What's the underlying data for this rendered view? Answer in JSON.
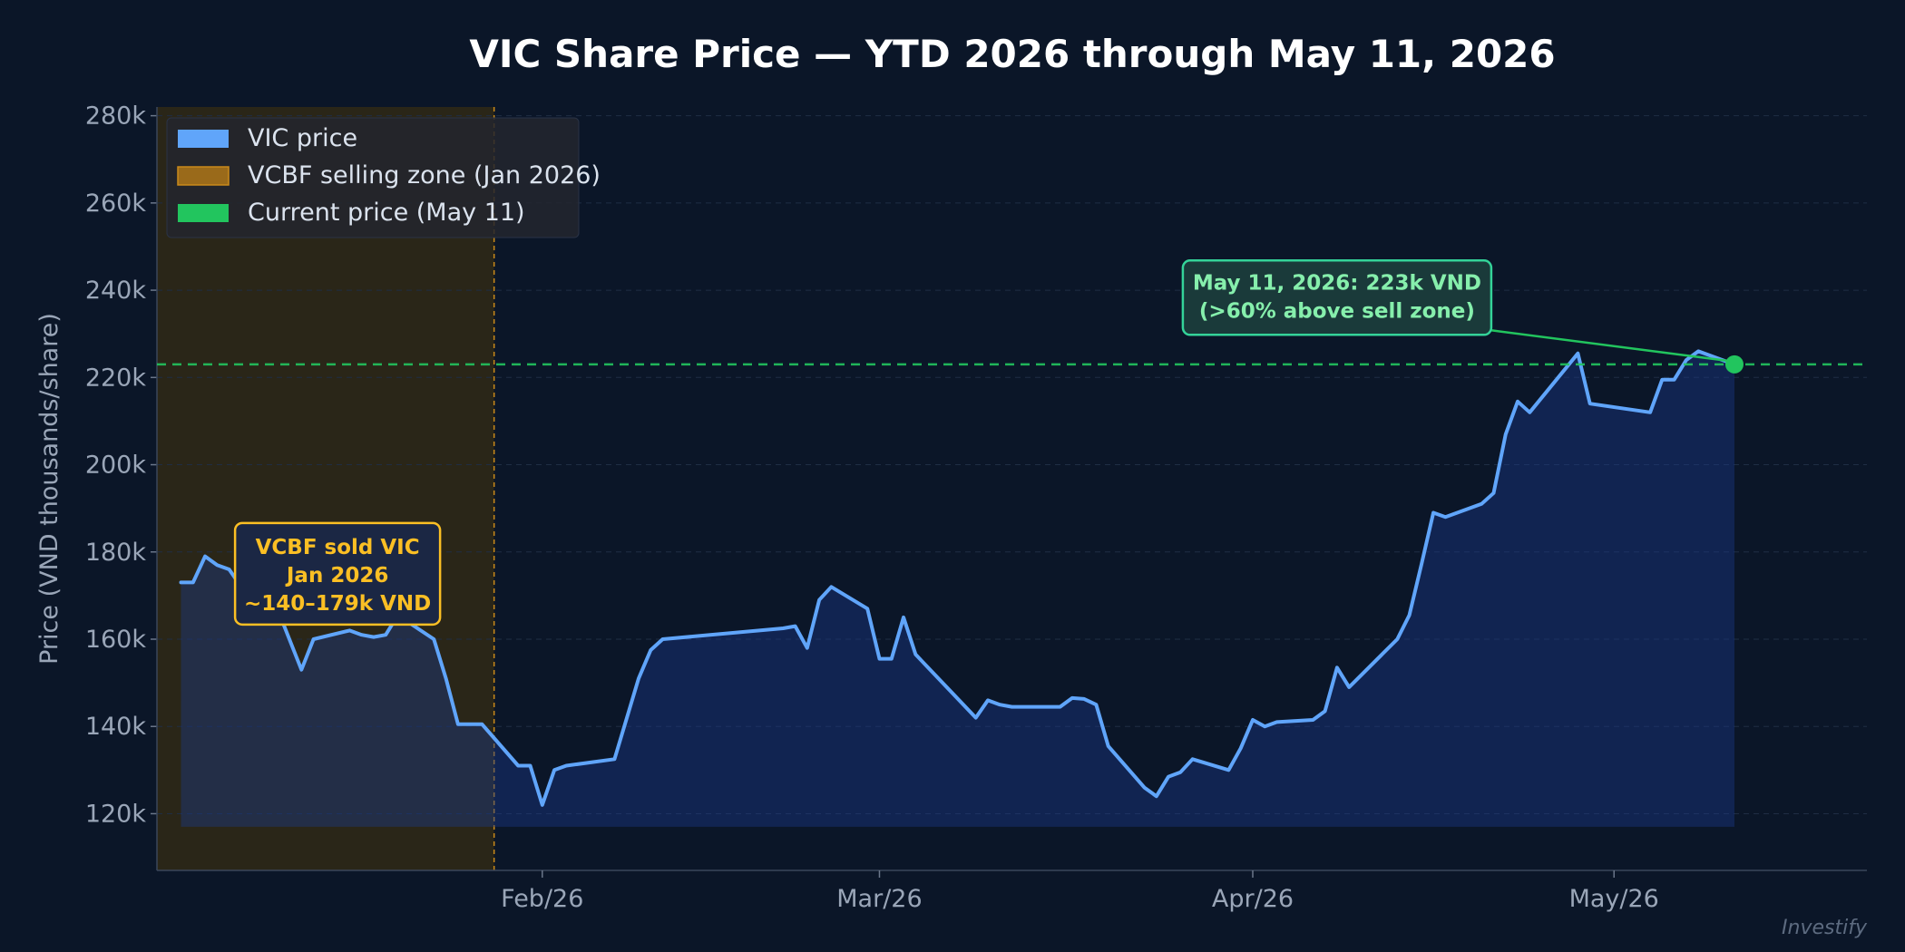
{
  "chart_data": {
    "type": "line",
    "title": "VIC Share Price — YTD 2026 through May 11, 2026",
    "ylabel": "Price (VND thousands/share)",
    "xlabel": "",
    "ylim": [
      107,
      282
    ],
    "xlim": [
      "2025-12-31",
      "2026-05-22"
    ],
    "y_ticks": [
      120,
      140,
      160,
      180,
      200,
      220,
      240,
      260,
      280
    ],
    "y_tick_labels": [
      "120k",
      "140k",
      "160k",
      "180k",
      "200k",
      "220k",
      "240k",
      "260k",
      "280k"
    ],
    "x_ticks": [
      {
        "date": "2026-02-01",
        "label": "Feb/26"
      },
      {
        "date": "2026-03-01",
        "label": "Mar/26"
      },
      {
        "date": "2026-04-01",
        "label": "Apr/26"
      },
      {
        "date": "2026-05-01",
        "label": "May/26"
      }
    ],
    "grid": true,
    "legend_position": "top-left",
    "series": [
      {
        "name": "VIC price",
        "color": "#60a5fa",
        "points": [
          [
            "2026-01-02",
            173
          ],
          [
            "2026-01-03",
            173
          ],
          [
            "2026-01-04",
            179
          ],
          [
            "2026-01-05",
            177
          ],
          [
            "2026-01-06",
            176
          ],
          [
            "2026-01-09",
            164
          ],
          [
            "2026-01-10",
            167
          ],
          [
            "2026-01-12",
            153
          ],
          [
            "2026-01-13",
            160
          ],
          [
            "2026-01-16",
            162
          ],
          [
            "2026-01-17",
            161
          ],
          [
            "2026-01-18",
            160.5
          ],
          [
            "2026-01-19",
            161
          ],
          [
            "2026-01-20",
            165.5
          ],
          [
            "2026-01-23",
            160
          ],
          [
            "2026-01-24",
            151
          ],
          [
            "2026-01-25",
            140.5
          ],
          [
            "2026-01-27",
            140.5
          ],
          [
            "2026-01-30",
            131
          ],
          [
            "2026-01-31",
            131
          ],
          [
            "2026-02-01",
            122
          ],
          [
            "2026-02-02",
            130
          ],
          [
            "2026-02-03",
            131
          ],
          [
            "2026-02-07",
            132.5
          ],
          [
            "2026-02-09",
            151
          ],
          [
            "2026-02-10",
            157.5
          ],
          [
            "2026-02-11",
            160
          ],
          [
            "2026-02-21",
            162.5
          ],
          [
            "2026-02-22",
            163
          ],
          [
            "2026-02-23",
            158
          ],
          [
            "2026-02-24",
            169
          ],
          [
            "2026-02-25",
            172
          ],
          [
            "2026-02-28",
            167
          ],
          [
            "2026-03-01",
            155.5
          ],
          [
            "2026-03-02",
            155.5
          ],
          [
            "2026-03-03",
            165
          ],
          [
            "2026-03-04",
            156.5
          ],
          [
            "2026-03-09",
            142
          ],
          [
            "2026-03-10",
            146
          ],
          [
            "2026-03-11",
            145
          ],
          [
            "2026-03-12",
            144.5
          ],
          [
            "2026-03-16",
            144.5
          ],
          [
            "2026-03-17",
            146.5
          ],
          [
            "2026-03-18",
            146.3
          ],
          [
            "2026-03-19",
            145
          ],
          [
            "2026-03-20",
            135.5
          ],
          [
            "2026-03-23",
            126
          ],
          [
            "2026-03-24",
            124
          ],
          [
            "2026-03-25",
            128.5
          ],
          [
            "2026-03-26",
            129.5
          ],
          [
            "2026-03-27",
            132.5
          ],
          [
            "2026-03-30",
            130
          ],
          [
            "2026-03-31",
            135
          ],
          [
            "2026-04-01",
            141.5
          ],
          [
            "2026-04-02",
            140
          ],
          [
            "2026-04-03",
            141
          ],
          [
            "2026-04-06",
            141.5
          ],
          [
            "2026-04-07",
            143.5
          ],
          [
            "2026-04-08",
            153.5
          ],
          [
            "2026-04-09",
            149
          ],
          [
            "2026-04-13",
            160
          ],
          [
            "2026-04-14",
            165.5
          ],
          [
            "2026-04-15",
            177
          ],
          [
            "2026-04-16",
            189
          ],
          [
            "2026-04-17",
            188
          ],
          [
            "2026-04-20",
            191
          ],
          [
            "2026-04-21",
            193.5
          ],
          [
            "2026-04-22",
            207
          ],
          [
            "2026-04-23",
            214.5
          ],
          [
            "2026-04-24",
            212
          ],
          [
            "2026-04-28",
            225.5
          ],
          [
            "2026-04-29",
            214
          ],
          [
            "2026-05-04",
            212
          ],
          [
            "2026-05-05",
            219.5
          ],
          [
            "2026-05-06",
            219.5
          ],
          [
            "2026-05-07",
            224
          ],
          [
            "2026-05-08",
            226
          ],
          [
            "2026-05-11",
            223
          ]
        ]
      }
    ],
    "legend": [
      {
        "label": "VIC price",
        "color": "#60a5fa"
      },
      {
        "label": "VCBF selling zone (Jan 2026)",
        "color": "#9a6a1a"
      },
      {
        "label": "Current price (May 11)",
        "color": "#22c55e"
      }
    ],
    "shaded_zone": {
      "from": "2025-12-31",
      "to": "2026-01-28",
      "color": "#9a6a1a"
    },
    "reference_line": {
      "y": 223,
      "color": "#22c55e"
    },
    "current_point": {
      "date": "2026-05-11",
      "y": 223
    },
    "annotations": [
      {
        "lines": [
          "VCBF sold VIC",
          "Jan 2026",
          "~140–179k VND"
        ],
        "color": "#fbbf24",
        "anchor": [
          "2026-01-15",
          175
        ]
      },
      {
        "lines": [
          "May 11, 2026: 223k VND",
          "(>60% above sell zone)"
        ],
        "color": "#86efac",
        "anchor": [
          "2026-04-08",
          238.5
        ],
        "arrow_to": [
          "2026-05-11",
          223
        ]
      }
    ]
  },
  "watermark": "Investify"
}
